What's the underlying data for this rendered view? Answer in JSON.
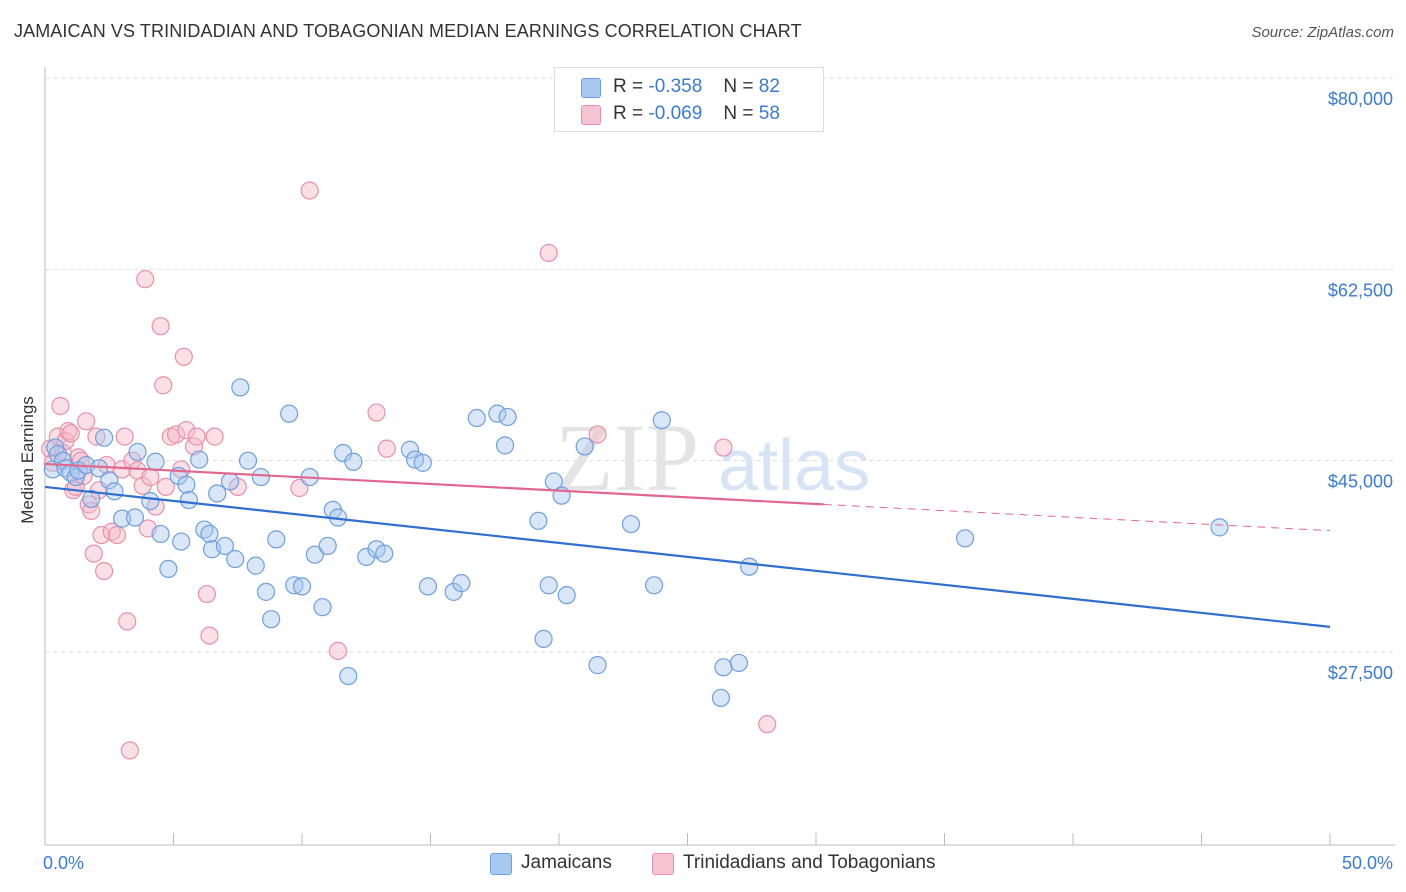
{
  "title": "JAMAICAN VS TRINIDADIAN AND TOBAGONIAN MEDIAN EARNINGS CORRELATION CHART",
  "source": "Source: ZipAtlas.com",
  "watermark": "ZIPatlas",
  "legend": {
    "rows": [
      {
        "r_label": "R =",
        "r_value": "-0.358",
        "n_label": "N =",
        "n_value": "82"
      },
      {
        "r_label": "R =",
        "r_value": "-0.069",
        "n_label": "N =",
        "n_value": "58"
      }
    ]
  },
  "bottom_legend": [
    "Jamaicans",
    "Trinidadians and Tobagonians"
  ],
  "colors": {
    "blue_fill": "#a9c8f0",
    "blue_stroke": "#6e9fdf",
    "blue_line": "#2f6fd0",
    "pink_fill": "#f5b8c9",
    "pink_stroke": "#e890aa",
    "pink_line": "#e0688e",
    "label_blue": "#3a7bd5",
    "grid": "#dcdcdc"
  },
  "chart_data": {
    "type": "scatter",
    "title": "JAMAICAN VS TRINIDADIAN AND TOBAGONIAN MEDIAN EARNINGS CORRELATION CHART",
    "xlabel": "",
    "ylabel": "Median Earnings",
    "xlim": [
      0,
      50
    ],
    "ylim": [
      10000,
      82000
    ],
    "x_tick_labels": [
      "0.0%",
      "50.0%"
    ],
    "y_ticks": [
      27500,
      45000,
      62500,
      80000
    ],
    "y_tick_labels": [
      "$27,500",
      "$45,000",
      "$62,500",
      "$80,000"
    ],
    "grid": true,
    "series": [
      {
        "name": "Jamaicans",
        "points": [
          [
            0.3,
            44.2
          ],
          [
            0.4,
            46.2
          ],
          [
            0.5,
            45.6
          ],
          [
            0.7,
            45.0
          ],
          [
            0.8,
            44.3
          ],
          [
            1.0,
            43.9
          ],
          [
            1.2,
            43.5
          ],
          [
            1.3,
            44.1
          ],
          [
            1.6,
            44.6
          ],
          [
            1.8,
            41.5
          ],
          [
            2.1,
            44.3
          ],
          [
            2.3,
            47.1
          ],
          [
            2.5,
            43.2
          ],
          [
            2.7,
            42.2
          ],
          [
            3.0,
            39.7
          ],
          [
            3.5,
            39.8
          ],
          [
            3.6,
            45.8
          ],
          [
            4.1,
            41.3
          ],
          [
            4.3,
            44.9
          ],
          [
            4.5,
            38.3
          ],
          [
            4.8,
            35.1
          ],
          [
            5.2,
            43.6
          ],
          [
            5.3,
            37.6
          ],
          [
            5.5,
            42.8
          ],
          [
            5.6,
            41.4
          ],
          [
            6.0,
            45.1
          ],
          [
            6.2,
            38.7
          ],
          [
            6.4,
            38.3
          ],
          [
            6.5,
            36.9
          ],
          [
            6.7,
            42.0
          ],
          [
            7.0,
            37.2
          ],
          [
            7.2,
            43.1
          ],
          [
            7.4,
            36.0
          ],
          [
            7.6,
            51.7
          ],
          [
            7.9,
            45.0
          ],
          [
            8.2,
            35.4
          ],
          [
            8.4,
            43.5
          ],
          [
            8.6,
            33.0
          ],
          [
            8.8,
            30.5
          ],
          [
            9.0,
            37.8
          ],
          [
            9.5,
            49.3
          ],
          [
            9.7,
            33.6
          ],
          [
            10.0,
            33.5
          ],
          [
            10.3,
            43.5
          ],
          [
            10.5,
            36.4
          ],
          [
            10.8,
            31.6
          ],
          [
            11.0,
            37.2
          ],
          [
            11.2,
            40.5
          ],
          [
            11.4,
            39.8
          ],
          [
            11.6,
            45.7
          ],
          [
            11.8,
            25.3
          ],
          [
            12.0,
            44.9
          ],
          [
            12.5,
            36.2
          ],
          [
            12.9,
            36.9
          ],
          [
            13.2,
            36.5
          ],
          [
            14.2,
            46.0
          ],
          [
            14.4,
            45.1
          ],
          [
            14.7,
            44.8
          ],
          [
            14.9,
            33.5
          ],
          [
            15.9,
            33.0
          ],
          [
            16.2,
            33.8
          ],
          [
            16.8,
            48.9
          ],
          [
            17.6,
            49.3
          ],
          [
            17.9,
            46.4
          ],
          [
            18.0,
            49.0
          ],
          [
            19.2,
            39.5
          ],
          [
            19.4,
            28.7
          ],
          [
            19.6,
            33.6
          ],
          [
            19.8,
            43.1
          ],
          [
            20.1,
            41.8
          ],
          [
            20.3,
            32.7
          ],
          [
            21.0,
            46.3
          ],
          [
            21.5,
            26.3
          ],
          [
            22.8,
            39.2
          ],
          [
            23.7,
            33.6
          ],
          [
            24.0,
            48.7
          ],
          [
            26.3,
            23.3
          ],
          [
            26.4,
            26.1
          ],
          [
            27.0,
            26.5
          ],
          [
            27.4,
            35.3
          ],
          [
            35.8,
            37.9
          ],
          [
            45.7,
            38.9
          ]
        ]
      },
      {
        "name": "Trinidadians and Tobagonians",
        "points": [
          [
            0.2,
            46.1
          ],
          [
            0.3,
            44.8
          ],
          [
            0.5,
            47.2
          ],
          [
            0.6,
            50.0
          ],
          [
            0.7,
            45.7
          ],
          [
            0.8,
            46.8
          ],
          [
            0.9,
            47.7
          ],
          [
            1.0,
            47.5
          ],
          [
            1.1,
            42.3
          ],
          [
            1.2,
            42.6
          ],
          [
            1.3,
            45.3
          ],
          [
            1.4,
            45.0
          ],
          [
            1.5,
            43.6
          ],
          [
            1.6,
            48.6
          ],
          [
            1.7,
            41.0
          ],
          [
            1.8,
            40.4
          ],
          [
            1.9,
            36.5
          ],
          [
            2.0,
            47.2
          ],
          [
            2.1,
            42.3
          ],
          [
            2.2,
            38.2
          ],
          [
            2.3,
            34.9
          ],
          [
            2.4,
            44.6
          ],
          [
            2.6,
            38.5
          ],
          [
            2.8,
            38.2
          ],
          [
            3.0,
            44.2
          ],
          [
            3.1,
            47.2
          ],
          [
            3.2,
            30.3
          ],
          [
            3.3,
            18.5
          ],
          [
            3.4,
            45.0
          ],
          [
            3.6,
            44.1
          ],
          [
            3.8,
            42.7
          ],
          [
            3.9,
            61.6
          ],
          [
            4.0,
            38.8
          ],
          [
            4.1,
            43.5
          ],
          [
            4.3,
            40.8
          ],
          [
            4.5,
            57.3
          ],
          [
            4.6,
            51.9
          ],
          [
            4.7,
            42.6
          ],
          [
            4.9,
            47.2
          ],
          [
            5.1,
            47.4
          ],
          [
            5.3,
            44.2
          ],
          [
            5.4,
            54.5
          ],
          [
            5.5,
            47.8
          ],
          [
            5.8,
            46.3
          ],
          [
            5.9,
            47.2
          ],
          [
            6.3,
            32.8
          ],
          [
            6.4,
            29.0
          ],
          [
            6.6,
            47.2
          ],
          [
            7.5,
            42.6
          ],
          [
            9.9,
            42.5
          ],
          [
            10.3,
            69.7
          ],
          [
            11.4,
            27.6
          ],
          [
            12.9,
            49.4
          ],
          [
            13.3,
            46.1
          ],
          [
            19.6,
            64.0
          ],
          [
            21.5,
            47.4
          ],
          [
            26.4,
            46.2
          ],
          [
            28.1,
            20.9
          ]
        ]
      }
    ],
    "trend_lines": [
      {
        "name": "Jamaicans",
        "x": [
          0,
          50
        ],
        "y": [
          42.6,
          29.8
        ]
      },
      {
        "name": "Trinidadians and Tobagonians",
        "x": [
          0,
          30.3
        ],
        "y": [
          44.7,
          41.0
        ],
        "dashed_to_x": 50,
        "dashed_to_y": 38.6
      }
    ]
  }
}
